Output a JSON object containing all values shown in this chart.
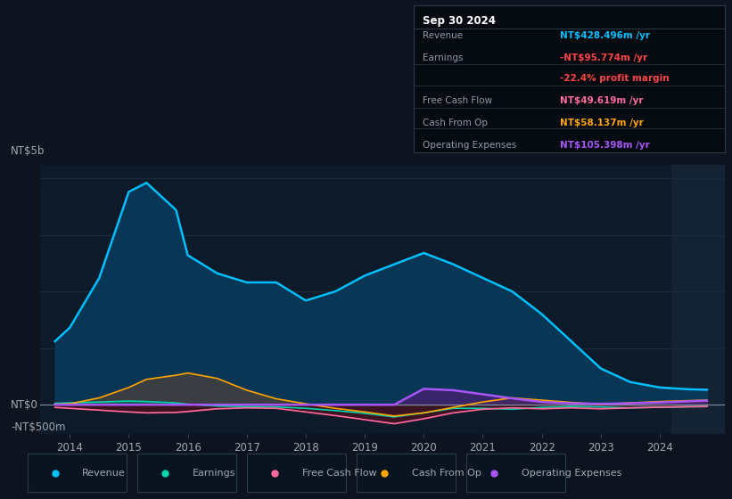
{
  "bg_color": "#0d1420",
  "plot_bg_color": "#0d1a2a",
  "grid_color": "#1e2d40",
  "text_color": "#a0a8b0",
  "ylabel_top": "NT$5b",
  "ylabel_zero": "NT$0",
  "ylabel_neg": "-NT$500m",
  "x_years": [
    2013.75,
    2014.0,
    2014.5,
    2015.0,
    2015.3,
    2015.8,
    2016.0,
    2016.5,
    2017.0,
    2017.5,
    2018.0,
    2018.5,
    2019.0,
    2019.5,
    2020.0,
    2020.5,
    2021.0,
    2021.5,
    2022.0,
    2022.5,
    2023.0,
    2023.5,
    2024.0,
    2024.5,
    2024.8
  ],
  "revenue": [
    1400,
    1700,
    2800,
    4700,
    4900,
    4300,
    3300,
    2900,
    2700,
    2700,
    2300,
    2500,
    2850,
    3100,
    3350,
    3100,
    2800,
    2500,
    2000,
    1400,
    800,
    500,
    380,
    340,
    330
  ],
  "earnings": [
    30,
    40,
    60,
    80,
    70,
    40,
    10,
    -30,
    -40,
    -50,
    -80,
    -130,
    -190,
    -270,
    -180,
    -80,
    -80,
    -100,
    -60,
    -40,
    -50,
    -70,
    -55,
    -45,
    -40
  ],
  "free_cash_flow": [
    -60,
    -80,
    -120,
    -160,
    -180,
    -170,
    -150,
    -90,
    -70,
    -80,
    -160,
    -240,
    -330,
    -420,
    -310,
    -180,
    -100,
    -70,
    -90,
    -70,
    -90,
    -70,
    -55,
    -45,
    -40
  ],
  "cash_from_op": [
    10,
    20,
    150,
    380,
    560,
    650,
    700,
    580,
    320,
    130,
    20,
    -80,
    -160,
    -250,
    -180,
    -60,
    60,
    150,
    100,
    50,
    10,
    40,
    70,
    90,
    100
  ],
  "operating_expenses": [
    0,
    0,
    0,
    0,
    0,
    0,
    0,
    0,
    0,
    0,
    0,
    0,
    0,
    0,
    350,
    320,
    230,
    140,
    60,
    30,
    20,
    30,
    50,
    75,
    90
  ],
  "revenue_color": "#00bfff",
  "earnings_color": "#00d4aa",
  "free_cash_flow_color": "#ff6b9d",
  "cash_from_op_color": "#ffa500",
  "operating_expenses_color": "#a855f7",
  "revenue_fill_alpha": 0.75,
  "cash_from_op_fill_color": "#3a3a3a",
  "operating_expenses_fill_color": "#4a2070",
  "info_box": {
    "title": "Sep 30 2024",
    "rows": [
      {
        "label": "Revenue",
        "value": "NT$428.496m /yr",
        "value_color": "#00bfff"
      },
      {
        "label": "Earnings",
        "value": "-NT$95.774m /yr",
        "value_color": "#ff4444"
      },
      {
        "label": "",
        "value": "-22.4% profit margin",
        "value_color": "#ff4444"
      },
      {
        "label": "Free Cash Flow",
        "value": "NT$49.619m /yr",
        "value_color": "#ff6b9d"
      },
      {
        "label": "Cash From Op",
        "value": "NT$58.137m /yr",
        "value_color": "#ffa500"
      },
      {
        "label": "Operating Expenses",
        "value": "NT$105.398m /yr",
        "value_color": "#a855f7"
      }
    ]
  },
  "legend_items": [
    {
      "label": "Revenue",
      "color": "#00bfff"
    },
    {
      "label": "Earnings",
      "color": "#00d4aa"
    },
    {
      "label": "Free Cash Flow",
      "color": "#ff6b9d"
    },
    {
      "label": "Cash From Op",
      "color": "#ffa500"
    },
    {
      "label": "Operating Expenses",
      "color": "#a855f7"
    }
  ],
  "xticks": [
    2014,
    2015,
    2016,
    2017,
    2018,
    2019,
    2020,
    2021,
    2022,
    2023,
    2024
  ],
  "xlim": [
    2013.5,
    2025.1
  ],
  "ylim": [
    -650,
    5300
  ]
}
